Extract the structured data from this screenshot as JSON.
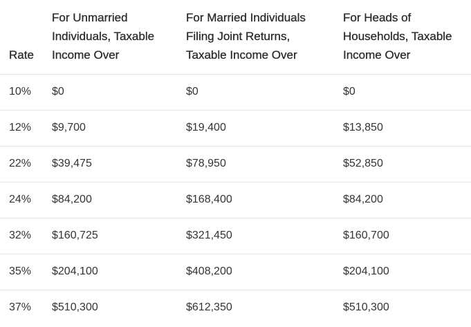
{
  "table": {
    "header": [
      "Rate",
      "For Unmarried Individuals, Taxable Income Over",
      "For Married Individuals Filing Joint Returns, Taxable Income Over",
      "For Heads of Households, Taxable Income Over"
    ],
    "rows": [
      [
        "10%",
        "$0",
        "$0",
        "$0"
      ],
      [
        "12%",
        "$9,700",
        "$19,400",
        "$13,850"
      ],
      [
        "22%",
        "$39,475",
        "$78,950",
        "$52,850"
      ],
      [
        "24%",
        "$84,200",
        "$168,400",
        "$84,200"
      ],
      [
        "32%",
        "$160,725",
        "$321,450",
        "$160,700"
      ],
      [
        "35%",
        "$204,100",
        "$408,200",
        "$204,100"
      ],
      [
        "37%",
        "$510,300",
        "$612,350",
        "$510,300"
      ]
    ]
  }
}
